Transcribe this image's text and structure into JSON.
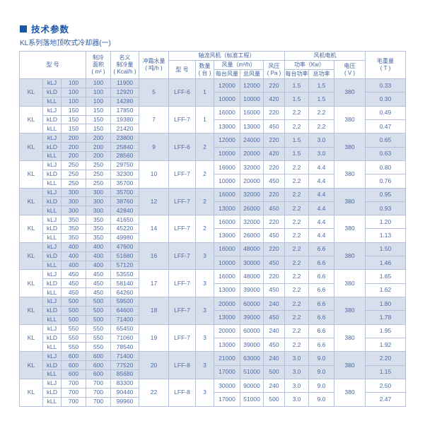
{
  "page": {
    "title": "技术参数",
    "subtitle": "KL系列落地顶吹式冷却器(一)",
    "accent_color": "#1b55a6",
    "text_color": "#4a6ba8",
    "shade_color": "#d8dfec",
    "border_color": "#b3c1d8"
  },
  "table": {
    "header": {
      "model": "型 号",
      "area": "制冷\n面积\n( m² )",
      "capacity": "名义\n制冷量\n( Kcal/h )",
      "water": "冲霜水量\n( 吨/h )",
      "fan_group": "轴流风机（标准工程）",
      "motor_group": "风机电机",
      "weight": "毛重量\n( T )",
      "fan_model": "型 号",
      "qty": "数量\n( 台 )",
      "flow": "风量（m³/h）",
      "pressure": "风压\n( Pa )",
      "power": "功率（Kw）",
      "voltage": "电压\n( V )",
      "flow_per": "每台风量",
      "flow_total": "总风量",
      "power_per": "每台功率",
      "power_total": "总功率"
    },
    "groups": [
      {
        "brand": "KL",
        "variants": [
          {
            "name": "kLJ",
            "model": "100",
            "area": "100",
            "capacity": "11900"
          },
          {
            "name": "kLD",
            "model": "100",
            "area": "100",
            "capacity": "12920"
          },
          {
            "name": "kLL",
            "model": "100",
            "area": "100",
            "capacity": "14280"
          }
        ],
        "water": "5",
        "fan_model": "LFF-6",
        "qty": "1",
        "voltage": "380",
        "fans": [
          {
            "flow_per": "12000",
            "flow_total": "12000",
            "pressure": "220",
            "power_per": "1.5",
            "power_total": "1.5",
            "weight": "0.33"
          },
          {
            "flow_per": "10000",
            "flow_total": "10000",
            "pressure": "420",
            "power_per": "1.5",
            "power_total": "1.5",
            "weight": "0.30"
          }
        ]
      },
      {
        "brand": "KL",
        "variants": [
          {
            "name": "kLJ",
            "model": "150",
            "area": "150",
            "capacity": "17850"
          },
          {
            "name": "kLD",
            "model": "150",
            "area": "150",
            "capacity": "19380"
          },
          {
            "name": "kLL",
            "model": "150",
            "area": "150",
            "capacity": "21420"
          }
        ],
        "water": "7",
        "fan_model": "LFF-7",
        "qty": "1",
        "voltage": "380",
        "fans": [
          {
            "flow_per": "16000",
            "flow_total": "16000",
            "pressure": "220",
            "power_per": "2.2",
            "power_total": "2.2",
            "weight": "0.49"
          },
          {
            "flow_per": "13000",
            "flow_total": "13000",
            "pressure": "450",
            "power_per": "2.2",
            "power_total": "2.2",
            "weight": "0.47"
          }
        ]
      },
      {
        "brand": "KL",
        "variants": [
          {
            "name": "kLJ",
            "model": "200",
            "area": "200",
            "capacity": "23800"
          },
          {
            "name": "kLD",
            "model": "200",
            "area": "200",
            "capacity": "25840"
          },
          {
            "name": "kLL",
            "model": "200",
            "area": "200",
            "capacity": "28560"
          }
        ],
        "water": "9",
        "fan_model": "LFF-6",
        "qty": "2",
        "voltage": "380",
        "fans": [
          {
            "flow_per": "12000",
            "flow_total": "24000",
            "pressure": "220",
            "power_per": "1.5",
            "power_total": "3.0",
            "weight": "0.65"
          },
          {
            "flow_per": "10000",
            "flow_total": "20000",
            "pressure": "420",
            "power_per": "1.5",
            "power_total": "3.0",
            "weight": "0.63"
          }
        ]
      },
      {
        "brand": "KL",
        "variants": [
          {
            "name": "kLJ",
            "model": "250",
            "area": "250",
            "capacity": "29750"
          },
          {
            "name": "kLD",
            "model": "250",
            "area": "250",
            "capacity": "32300"
          },
          {
            "name": "kLL",
            "model": "250",
            "area": "250",
            "capacity": "35700"
          }
        ],
        "water": "10",
        "fan_model": "LFF-7",
        "qty": "2",
        "voltage": "380",
        "fans": [
          {
            "flow_per": "16000",
            "flow_total": "32000",
            "pressure": "220",
            "power_per": "2.2",
            "power_total": "4.4",
            "weight": "0.80"
          },
          {
            "flow_per": "10000",
            "flow_total": "20000",
            "pressure": "450",
            "power_per": "2.2",
            "power_total": "4.4",
            "weight": "0.76"
          }
        ]
      },
      {
        "brand": "KL",
        "variants": [
          {
            "name": "kLJ",
            "model": "300",
            "area": "300",
            "capacity": "35700"
          },
          {
            "name": "kLD",
            "model": "300",
            "area": "300",
            "capacity": "38760"
          },
          {
            "name": "kLL",
            "model": "300",
            "area": "300",
            "capacity": "42840"
          }
        ],
        "water": "12",
        "fan_model": "LFF-7",
        "qty": "2",
        "voltage": "380",
        "fans": [
          {
            "flow_per": "16000",
            "flow_total": "32000",
            "pressure": "220",
            "power_per": "2.2",
            "power_total": "4.4",
            "weight": "0.95"
          },
          {
            "flow_per": "13000",
            "flow_total": "26000",
            "pressure": "450",
            "power_per": "2.2",
            "power_total": "4.4",
            "weight": "0.93"
          }
        ]
      },
      {
        "brand": "KL",
        "variants": [
          {
            "name": "kLJ",
            "model": "350",
            "area": "350",
            "capacity": "41650"
          },
          {
            "name": "kLD",
            "model": "350",
            "area": "350",
            "capacity": "45220"
          },
          {
            "name": "kLL",
            "model": "350",
            "area": "350",
            "capacity": "49980"
          }
        ],
        "water": "14",
        "fan_model": "LFF-7",
        "qty": "2",
        "voltage": "380",
        "fans": [
          {
            "flow_per": "16000",
            "flow_total": "32000",
            "pressure": "220",
            "power_per": "2.2",
            "power_total": "4.4",
            "weight": "1.20"
          },
          {
            "flow_per": "13000",
            "flow_total": "26000",
            "pressure": "450",
            "power_per": "2.2",
            "power_total": "4.4",
            "weight": "1.13"
          }
        ]
      },
      {
        "brand": "KL",
        "variants": [
          {
            "name": "kLJ",
            "model": "400",
            "area": "400",
            "capacity": "47600"
          },
          {
            "name": "kLD",
            "model": "400",
            "area": "400",
            "capacity": "51680"
          },
          {
            "name": "kLL",
            "model": "400",
            "area": "400",
            "capacity": "57120"
          }
        ],
        "water": "16",
        "fan_model": "LFF-7",
        "qty": "3",
        "voltage": "380",
        "fans": [
          {
            "flow_per": "16000",
            "flow_total": "48000",
            "pressure": "220",
            "power_per": "2.2",
            "power_total": "6.6",
            "weight": "1.50"
          },
          {
            "flow_per": "10000",
            "flow_total": "30000",
            "pressure": "450",
            "power_per": "2.2",
            "power_total": "6.6",
            "weight": "1.46"
          }
        ]
      },
      {
        "brand": "KL",
        "variants": [
          {
            "name": "kLJ",
            "model": "450",
            "area": "450",
            "capacity": "53550"
          },
          {
            "name": "kLD",
            "model": "450",
            "area": "450",
            "capacity": "58140"
          },
          {
            "name": "kLL",
            "model": "450",
            "area": "450",
            "capacity": "64260"
          }
        ],
        "water": "17",
        "fan_model": "LFF-7",
        "qty": "3",
        "voltage": "380",
        "fans": [
          {
            "flow_per": "16000",
            "flow_total": "48000",
            "pressure": "220",
            "power_per": "2.2",
            "power_total": "6.6",
            "weight": "1.65"
          },
          {
            "flow_per": "13000",
            "flow_total": "39000",
            "pressure": "450",
            "power_per": "2.2",
            "power_total": "6.6",
            "weight": "1.62"
          }
        ]
      },
      {
        "brand": "KL",
        "variants": [
          {
            "name": "kLJ",
            "model": "500",
            "area": "500",
            "capacity": "59500"
          },
          {
            "name": "kLD",
            "model": "500",
            "area": "500",
            "capacity": "64600"
          },
          {
            "name": "kLL",
            "model": "500",
            "area": "500",
            "capacity": "71400"
          }
        ],
        "water": "18",
        "fan_model": "LFF-7",
        "qty": "3",
        "voltage": "380",
        "fans": [
          {
            "flow_per": "20000",
            "flow_total": "60000",
            "pressure": "240",
            "power_per": "2.2",
            "power_total": "6.6",
            "weight": "1.80"
          },
          {
            "flow_per": "13000",
            "flow_total": "39000",
            "pressure": "450",
            "power_per": "2.2",
            "power_total": "6.6",
            "weight": "1.78"
          }
        ]
      },
      {
        "brand": "KL",
        "variants": [
          {
            "name": "kLJ",
            "model": "550",
            "area": "550",
            "capacity": "65450"
          },
          {
            "name": "kLD",
            "model": "550",
            "area": "550",
            "capacity": "71060"
          },
          {
            "name": "kLL",
            "model": "550",
            "area": "550",
            "capacity": "78540"
          }
        ],
        "water": "19",
        "fan_model": "LFF-7",
        "qty": "3",
        "voltage": "380",
        "fans": [
          {
            "flow_per": "20000",
            "flow_total": "60000",
            "pressure": "240",
            "power_per": "2.2",
            "power_total": "6.6",
            "weight": "1.95"
          },
          {
            "flow_per": "13000",
            "flow_total": "39000",
            "pressure": "450",
            "power_per": "2.2",
            "power_total": "6.6",
            "weight": "1.92"
          }
        ]
      },
      {
        "brand": "KL",
        "variants": [
          {
            "name": "kLJ",
            "model": "600",
            "area": "600",
            "capacity": "71400"
          },
          {
            "name": "kLD",
            "model": "600",
            "area": "600",
            "capacity": "77520"
          },
          {
            "name": "kLL",
            "model": "600",
            "area": "600",
            "capacity": "85680"
          }
        ],
        "water": "20",
        "fan_model": "LFF-8",
        "qty": "3",
        "voltage": "380",
        "fans": [
          {
            "flow_per": "21000",
            "flow_total": "63000",
            "pressure": "240",
            "power_per": "3.0",
            "power_total": "9.0",
            "weight": "2.20"
          },
          {
            "flow_per": "17000",
            "flow_total": "51000",
            "pressure": "500",
            "power_per": "3.0",
            "power_total": "9.0",
            "weight": "1.15"
          }
        ]
      },
      {
        "brand": "KL",
        "variants": [
          {
            "name": "kLJ",
            "model": "700",
            "area": "700",
            "capacity": "83300"
          },
          {
            "name": "kLD",
            "model": "700",
            "area": "700",
            "capacity": "90440"
          },
          {
            "name": "kLL",
            "model": "700",
            "area": "700",
            "capacity": "99960"
          }
        ],
        "water": "22",
        "fan_model": "LFF-8",
        "qty": "3",
        "voltage": "380",
        "fans": [
          {
            "flow_per": "30000",
            "flow_total": "90000",
            "pressure": "240",
            "power_per": "3.0",
            "power_total": "9.0",
            "weight": "2.50"
          },
          {
            "flow_per": "17000",
            "flow_total": "51000",
            "pressure": "500",
            "power_per": "3.0",
            "power_total": "9.0",
            "weight": "2.47"
          }
        ]
      }
    ]
  }
}
